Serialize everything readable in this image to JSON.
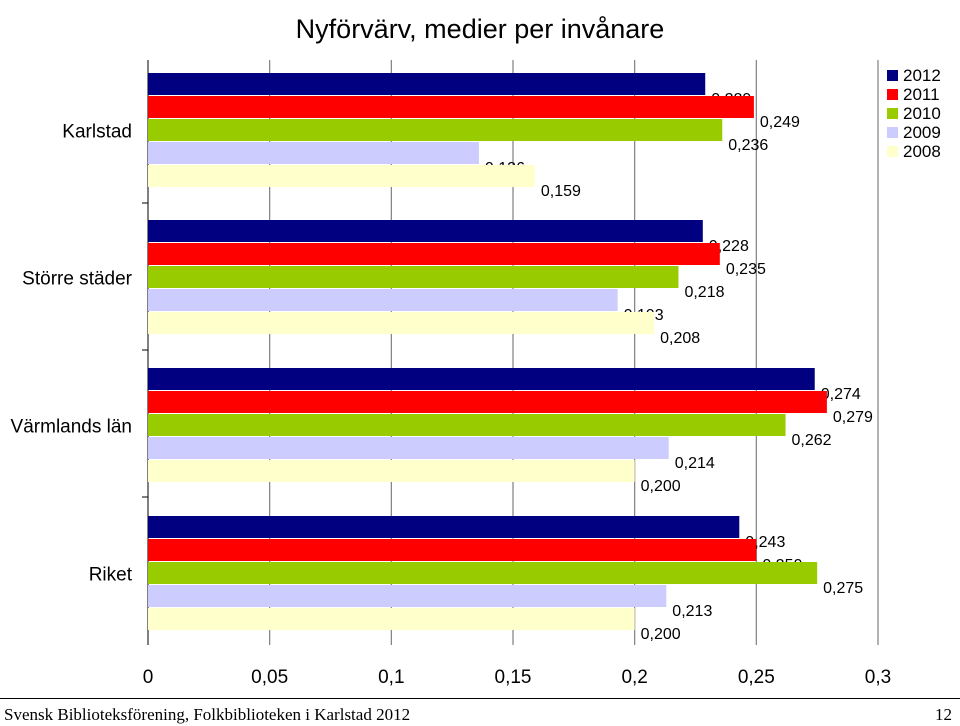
{
  "chart_data": {
    "type": "bar",
    "orientation": "horizontal",
    "title": "Nyförvärv, medier per invånare",
    "categories": [
      "Karlstad",
      "Större städer",
      "Värmlands län",
      "Riket"
    ],
    "series": [
      {
        "name": "2012",
        "color": "#000080",
        "values": [
          0.229,
          0.228,
          0.274,
          0.243
        ],
        "labels": [
          "0,229",
          "0,228",
          "0,274",
          "0,243"
        ]
      },
      {
        "name": "2011",
        "color": "#ff0000",
        "values": [
          0.249,
          0.235,
          0.279,
          0.25
        ],
        "labels": [
          "0,249",
          "0,235",
          "0,279",
          "0,250"
        ]
      },
      {
        "name": "2010",
        "color": "#99cc00",
        "values": [
          0.236,
          0.218,
          0.262,
          0.275
        ],
        "labels": [
          "0,236",
          "0,218",
          "0,262",
          "0,275"
        ]
      },
      {
        "name": "2009",
        "color": "#ccccff",
        "values": [
          0.136,
          0.193,
          0.214,
          0.213
        ],
        "labels": [
          "0,136",
          "0,193",
          "0,214",
          "0,213"
        ]
      },
      {
        "name": "2008",
        "color": "#ffffcc",
        "values": [
          0.159,
          0.208,
          0.2,
          0.2
        ],
        "labels": [
          "0,159",
          "0,208",
          "0,200",
          "0,200"
        ]
      }
    ],
    "xlim": [
      0,
      0.3
    ],
    "xticks": [
      0,
      0.05,
      0.1,
      0.15,
      0.2,
      0.25,
      0.3
    ],
    "xtick_labels": [
      "0",
      "0,05",
      "0,1",
      "0,15",
      "0,2",
      "0,25",
      "0,3"
    ],
    "grid": true,
    "legend": "top-right"
  },
  "footer": {
    "source": "Svensk Biblioteksförening, Folkbiblioteken i Karlstad 2012",
    "page_number": "12"
  }
}
